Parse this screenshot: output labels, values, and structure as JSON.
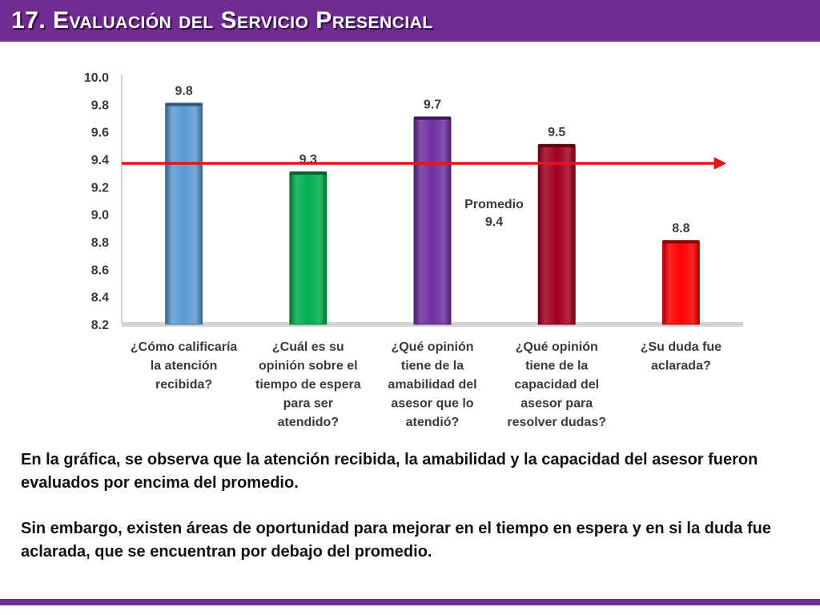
{
  "slide": {
    "title": "17. Evaluación del Servicio Presencial",
    "paragraphs": [
      "En la gráfica, se observa que la atención recibida, la amabilidad y la capacidad del asesor fueron evaluados por encima del promedio.",
      "Sin embargo, existen áreas de oportunidad para mejorar en el tiempo en espera y en si la duda fue aclarada, que se encuentran por debajo del promedio."
    ]
  },
  "colors": {
    "header": "#6f2c91",
    "average_line": "#e5141b"
  },
  "chart_data": {
    "type": "bar",
    "categories": [
      [
        "¿Cómo calificaría",
        "la atención",
        "recibida?"
      ],
      [
        "¿Cuál es su",
        "opinión sobre el",
        "tiempo de espera",
        "para ser",
        "atendido?"
      ],
      [
        "¿Qué opinión",
        "tiene de la",
        "amabilidad del",
        "asesor que lo",
        "atendió?"
      ],
      [
        "¿Qué opinión",
        "tiene de la",
        "capacidad del",
        "asesor para",
        "resolver dudas?"
      ],
      [
        "¿Su duda fue",
        "aclarada?"
      ]
    ],
    "values": [
      9.8,
      9.3,
      9.7,
      9.5,
      8.8
    ],
    "data_labels": [
      "9.8",
      "9.3",
      "9.7",
      "9.5",
      "8.8"
    ],
    "bar_colors": [
      "#5b9bd5",
      "#00b050",
      "#7030a0",
      "#a50021",
      "#ff0000"
    ],
    "ylim": [
      8.2,
      10.0
    ],
    "yticks": [
      "10.0",
      "9.8",
      "9.6",
      "9.4",
      "9.2",
      "9.0",
      "8.8",
      "8.6",
      "8.4",
      "8.2"
    ],
    "grid": false,
    "average": {
      "value": 9.4,
      "label_lines": [
        "Promedio",
        "9.4"
      ]
    }
  }
}
